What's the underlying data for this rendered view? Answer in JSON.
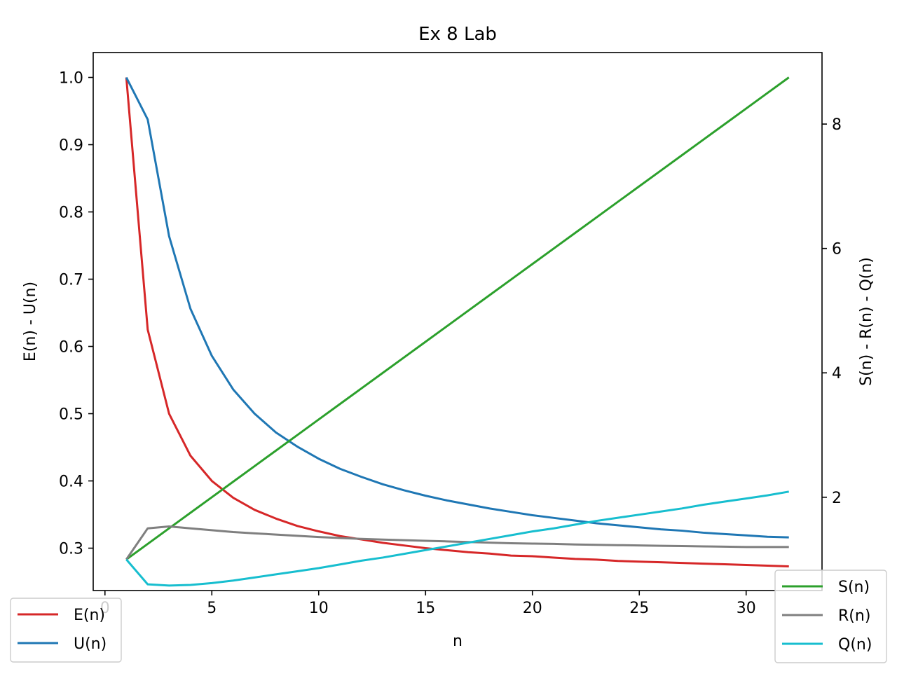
{
  "chart_data": {
    "type": "line",
    "title": "Ex 8 Lab",
    "xlabel": "n",
    "ylabel_left": "E(n) - U(n)",
    "ylabel_right": "S(n) - R(n) - Q(n)",
    "xlim": [
      -0.55,
      33.55
    ],
    "ylim_left": [
      0.237,
      1.037
    ],
    "ylim_right": [
      0.5,
      9.15
    ],
    "x_ticks": [
      0,
      5,
      10,
      15,
      20,
      25,
      30
    ],
    "y_ticks_left": [
      0.3,
      0.4,
      0.5,
      0.6,
      0.7,
      0.8,
      0.9,
      1.0
    ],
    "y_ticks_right": [
      2,
      4,
      6,
      8
    ],
    "x": [
      1,
      2,
      3,
      4,
      5,
      6,
      7,
      8,
      9,
      10,
      11,
      12,
      13,
      14,
      15,
      16,
      17,
      18,
      19,
      20,
      21,
      22,
      23,
      24,
      25,
      26,
      27,
      28,
      29,
      30,
      31,
      32
    ],
    "series": [
      {
        "name": "E(n)",
        "axis": "left",
        "color": "#d62728",
        "values": [
          1.0,
          0.625,
          0.5,
          0.4375,
          0.4,
          0.375,
          0.357,
          0.344,
          0.333,
          0.325,
          0.318,
          0.313,
          0.308,
          0.304,
          0.3,
          0.297,
          0.294,
          0.292,
          0.289,
          0.288,
          0.286,
          0.284,
          0.283,
          0.281,
          0.28,
          0.279,
          0.278,
          0.277,
          0.276,
          0.275,
          0.274,
          0.273
        ]
      },
      {
        "name": "U(n)",
        "axis": "left",
        "color": "#1f77b4",
        "values": [
          1.0,
          0.9375,
          0.764,
          0.656,
          0.586,
          0.536,
          0.5,
          0.472,
          0.451,
          0.433,
          0.418,
          0.406,
          0.395,
          0.386,
          0.378,
          0.371,
          0.365,
          0.359,
          0.354,
          0.349,
          0.345,
          0.341,
          0.337,
          0.334,
          0.331,
          0.328,
          0.326,
          0.323,
          0.321,
          0.319,
          0.317,
          0.316
        ]
      },
      {
        "name": "S(n)",
        "axis": "right",
        "color": "#2ca02c",
        "values": [
          1.0,
          1.25,
          1.5,
          1.75,
          2.0,
          2.25,
          2.5,
          2.75,
          3.0,
          3.25,
          3.5,
          3.75,
          4.0,
          4.25,
          4.5,
          4.75,
          5.0,
          5.25,
          5.5,
          5.75,
          6.0,
          6.25,
          6.5,
          6.75,
          7.0,
          7.25,
          7.5,
          7.75,
          8.0,
          8.25,
          8.5,
          8.75
        ]
      },
      {
        "name": "R(n)",
        "axis": "right",
        "color": "#7f7f7f",
        "values": [
          1.0,
          1.5,
          1.53,
          1.5,
          1.47,
          1.44,
          1.42,
          1.4,
          1.38,
          1.36,
          1.345,
          1.33,
          1.32,
          1.31,
          1.3,
          1.29,
          1.28,
          1.27,
          1.26,
          1.255,
          1.25,
          1.24,
          1.235,
          1.23,
          1.225,
          1.22,
          1.215,
          1.21,
          1.205,
          1.2,
          1.2,
          1.2
        ]
      },
      {
        "name": "Q(n)",
        "axis": "right",
        "color": "#17becf",
        "values": [
          1.0,
          0.6,
          0.58,
          0.59,
          0.62,
          0.66,
          0.71,
          0.76,
          0.81,
          0.86,
          0.92,
          0.98,
          1.03,
          1.09,
          1.15,
          1.21,
          1.27,
          1.33,
          1.39,
          1.45,
          1.5,
          1.56,
          1.62,
          1.67,
          1.72,
          1.77,
          1.82,
          1.88,
          1.93,
          1.98,
          2.03,
          2.09
        ]
      }
    ],
    "legend_left": [
      "E(n)",
      "U(n)"
    ],
    "legend_right": [
      "S(n)",
      "R(n)",
      "Q(n)"
    ],
    "legend_left_placement": "lower-left",
    "legend_right_placement": "lower-right",
    "grid": false
  }
}
